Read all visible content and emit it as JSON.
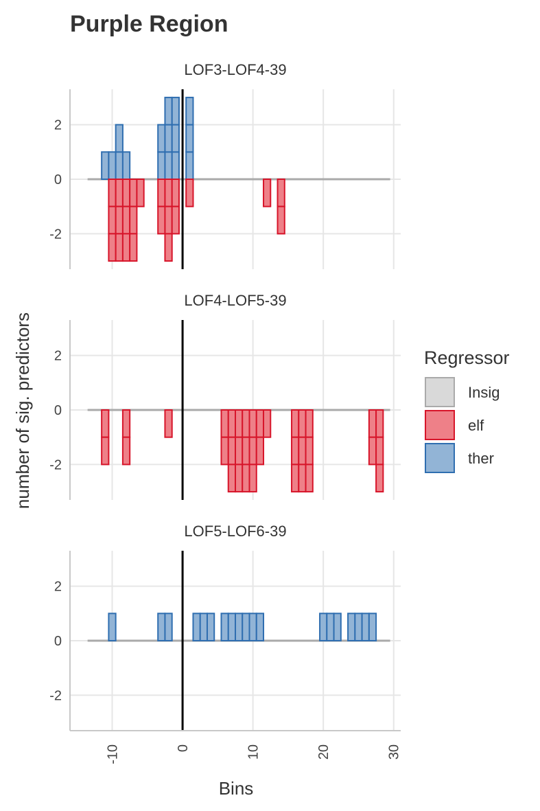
{
  "chart_data": {
    "type": "bar",
    "title": "Purple Region",
    "xlabel": "Bins",
    "ylabel": "number of sig. predictors",
    "xlim": [
      -16,
      31
    ],
    "ylim": [
      -3.3,
      3.3
    ],
    "x_ticks": [
      -10,
      0,
      10,
      20,
      30
    ],
    "y_ticks": [
      -2,
      0,
      2
    ],
    "grid": true,
    "vline_x": 0,
    "bar_width": 1,
    "insig_range": [
      -13.5,
      29.5
    ],
    "legend": {
      "title": "Regressor",
      "position": "right",
      "entries": [
        {
          "label": "Insig",
          "fill": "#d9d9d9",
          "stroke": "#aaaaaa"
        },
        {
          "label": "elf",
          "fill": "#ee8088",
          "stroke": "#d7152a"
        },
        {
          "label": "ther",
          "fill": "#92b4d6",
          "stroke": "#2f6eb0"
        }
      ]
    },
    "panels": [
      {
        "label": "LOF3-LOF4-39",
        "series": [
          {
            "name": "ther",
            "x": [
              -11,
              -10,
              -9,
              -8,
              -3,
              -2,
              -1,
              1
            ],
            "values": [
              1,
              1,
              2,
              1,
              2,
              3,
              3,
              3
            ]
          },
          {
            "name": "elf",
            "x": [
              -10,
              -9,
              -8,
              -7,
              -6,
              -3,
              -2,
              -1,
              1,
              12,
              14
            ],
            "values": [
              -3,
              -3,
              -3,
              -3,
              -1,
              -2,
              -3,
              -2,
              -1,
              -1,
              -2
            ]
          }
        ]
      },
      {
        "label": "LOF4-LOF5-39",
        "series": [
          {
            "name": "ther",
            "x": [],
            "values": []
          },
          {
            "name": "elf",
            "x": [
              -11,
              -8,
              -2,
              6,
              7,
              8,
              9,
              10,
              11,
              12,
              16,
              17,
              18,
              27,
              28
            ],
            "values": [
              -2,
              -2,
              -1,
              -2,
              -3,
              -3,
              -3,
              -3,
              -2,
              -1,
              -3,
              -3,
              -3,
              -2,
              -3
            ]
          }
        ]
      },
      {
        "label": "LOF5-LOF6-39",
        "series": [
          {
            "name": "ther",
            "x": [
              -10,
              -3,
              -2,
              2,
              3,
              4,
              6,
              7,
              8,
              9,
              10,
              11,
              20,
              21,
              22,
              24,
              25,
              26,
              27
            ],
            "values": [
              1,
              1,
              1,
              1,
              1,
              1,
              1,
              1,
              1,
              1,
              1,
              1,
              1,
              1,
              1,
              1,
              1,
              1,
              1
            ]
          },
          {
            "name": "elf",
            "x": [],
            "values": []
          }
        ]
      }
    ]
  }
}
